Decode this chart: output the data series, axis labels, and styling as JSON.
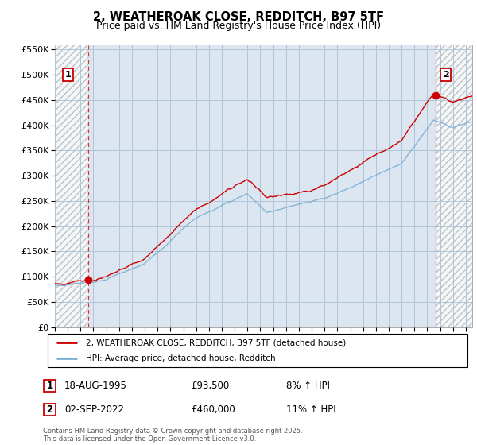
{
  "title": "2, WEATHEROAK CLOSE, REDDITCH, B97 5TF",
  "subtitle": "Price paid vs. HM Land Registry's House Price Index (HPI)",
  "ylim": [
    0,
    560000
  ],
  "yticks": [
    0,
    50000,
    100000,
    150000,
    200000,
    250000,
    300000,
    350000,
    400000,
    450000,
    500000,
    550000
  ],
  "ytick_labels": [
    "£0",
    "£50K",
    "£100K",
    "£150K",
    "£200K",
    "£250K",
    "£300K",
    "£350K",
    "£400K",
    "£450K",
    "£500K",
    "£550K"
  ],
  "xlim_start": 1993.0,
  "xlim_end": 2025.5,
  "plot_bg_color": "#dce6f0",
  "grid_color": "#b0c4d8",
  "red_line_color": "#cc0000",
  "blue_line_color": "#7bafd4",
  "dashed_red_color": "#dd3333",
  "point1_x": 1995.63,
  "point1_y": 93500,
  "point2_x": 2022.67,
  "point2_y": 460000,
  "label1": "1",
  "label2": "2",
  "legend_line1": "2, WEATHEROAK CLOSE, REDDITCH, B97 5TF (detached house)",
  "legend_line2": "HPI: Average price, detached house, Redditch",
  "table_row1": [
    "1",
    "18-AUG-1995",
    "£93,500",
    "8% ↑ HPI"
  ],
  "table_row2": [
    "2",
    "02-SEP-2022",
    "£460,000",
    "11% ↑ HPI"
  ],
  "footer": "Contains HM Land Registry data © Crown copyright and database right 2025.\nThis data is licensed under the Open Government Licence v3.0."
}
